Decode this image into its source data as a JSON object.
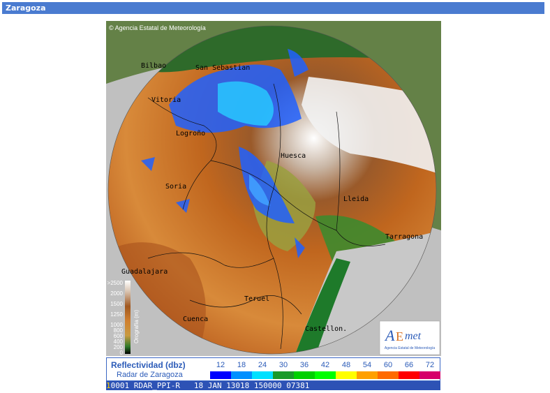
{
  "title": "Zaragoza",
  "map": {
    "copyright": "© Agencia Estatal de Meteorología",
    "cities": [
      "Bilbao",
      "San Sebastian",
      "Vitoria",
      "Logroño",
      "Huesca",
      "Soria",
      "Lleida",
      "Tarragona",
      "Guadalajara",
      "Teruel",
      "Cuenca",
      "Castellon."
    ],
    "scale_label": "Orografía (m)",
    "scale_ticks": [
      ">2500",
      "2000",
      "1500",
      "1250",
      "1000",
      "800",
      "600",
      "400",
      "200",
      "0"
    ],
    "logo_subtitle": "Agencia Estatal de Meteorología"
  },
  "legend": {
    "title": "Reflectividad (dbz)",
    "subtitle": "Radar de Zaragoza",
    "levels": [
      "12",
      "18",
      "24",
      "30",
      "36",
      "42",
      "48",
      "54",
      "60",
      "66",
      "72"
    ],
    "colors": [
      "#0000ff",
      "#0090ff",
      "#00e0ff",
      "#1a9a2a",
      "#00d000",
      "#00ff00",
      "#ffff00",
      "#ffa000",
      "#ff6a00",
      "#ff0000",
      "#d6006a"
    ]
  },
  "ticker": {
    "lead": "1",
    "text": "0001 RDAR_PPI-R   18 JAN 13018 150000 07381"
  }
}
